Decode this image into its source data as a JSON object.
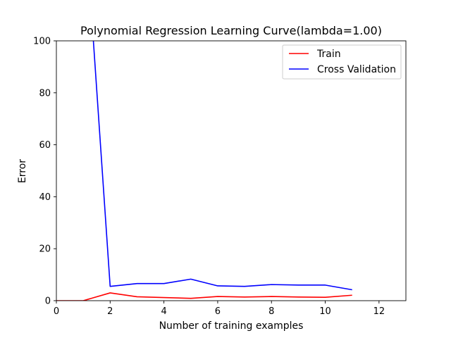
{
  "chart_data": {
    "type": "line",
    "title": "Polynomial Regression Learning Curve(lambda=1.00)",
    "xlabel": "Number of training examples",
    "ylabel": "Error",
    "xlim": [
      0,
      13
    ],
    "ylim": [
      0,
      100
    ],
    "xticks": [
      0,
      2,
      4,
      6,
      8,
      10,
      12
    ],
    "yticks": [
      0,
      20,
      40,
      60,
      80,
      100
    ],
    "grid": false,
    "legend": "top-right",
    "series": [
      {
        "name": "Train",
        "color": "#ff0000",
        "x": [
          0,
          1,
          2,
          3,
          4,
          5,
          6,
          7,
          8,
          9,
          10,
          11
        ],
        "y": [
          0,
          0,
          3.0,
          1.5,
          1.2,
          0.9,
          1.6,
          1.4,
          1.6,
          1.4,
          1.3,
          2.1
        ]
      },
      {
        "name": "Cross Validation",
        "color": "#0000ff",
        "x": [
          0,
          1,
          2,
          3,
          4,
          5,
          6,
          7,
          8,
          9,
          10,
          11
        ],
        "y": [
          null,
          157,
          5.5,
          6.6,
          6.6,
          8.3,
          5.7,
          5.5,
          6.2,
          6.0,
          6.0,
          4.2
        ]
      }
    ]
  }
}
